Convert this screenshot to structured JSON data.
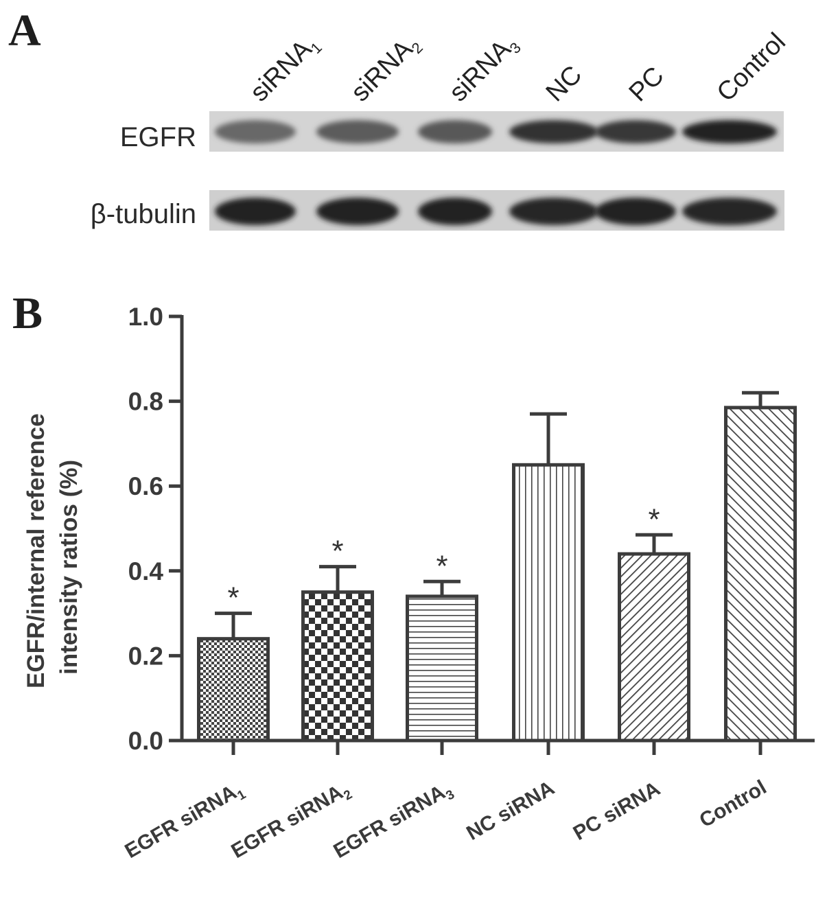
{
  "panel_a": {
    "letter": "A",
    "lanes": [
      {
        "main": "siRNA",
        "sub": "1"
      },
      {
        "main": "siRNA",
        "sub": "2"
      },
      {
        "main": "siRNA",
        "sub": "3"
      },
      {
        "main": "NC",
        "sub": ""
      },
      {
        "main": "PC",
        "sub": ""
      },
      {
        "main": "Control",
        "sub": ""
      }
    ],
    "rows": [
      {
        "label": "EGFR",
        "intensity": [
          0.55,
          0.62,
          0.64,
          0.85,
          0.82,
          0.95
        ]
      },
      {
        "label": "β-tubulin",
        "intensity": [
          0.95,
          0.95,
          0.95,
          0.92,
          0.95,
          0.93
        ]
      }
    ]
  },
  "panel_b": {
    "letter": "B"
  },
  "chart_data": {
    "type": "bar",
    "title": "",
    "xlabel": "",
    "ylabel_lines": [
      "EGFR/internal reference",
      "intensity ratios (%)"
    ],
    "ylim": [
      0,
      1.0
    ],
    "yticks": [
      "0.0",
      "0.2",
      "0.4",
      "0.6",
      "0.8",
      "1.0"
    ],
    "grid": false,
    "categories": [
      {
        "main": "EGFR siRNA",
        "sub": "1"
      },
      {
        "main": "EGFR siRNA",
        "sub": "2"
      },
      {
        "main": "EGFR siRNA",
        "sub": "3"
      },
      {
        "main": "NC siRNA",
        "sub": ""
      },
      {
        "main": "PC siRNA",
        "sub": ""
      },
      {
        "main": "Control",
        "sub": ""
      }
    ],
    "values": [
      0.24,
      0.35,
      0.34,
      0.65,
      0.44,
      0.785
    ],
    "errors": [
      0.06,
      0.06,
      0.035,
      0.12,
      0.045,
      0.035
    ],
    "significance": [
      "*",
      "*",
      "*",
      "",
      "*",
      ""
    ],
    "patterns": [
      "fine-checker",
      "coarse-checker",
      "horizontal-lines",
      "vertical-lines",
      "diagonal-right",
      "diagonal-left"
    ],
    "colors": {
      "stroke": "#3c3c3c",
      "axis": "#3c3c3c"
    }
  }
}
